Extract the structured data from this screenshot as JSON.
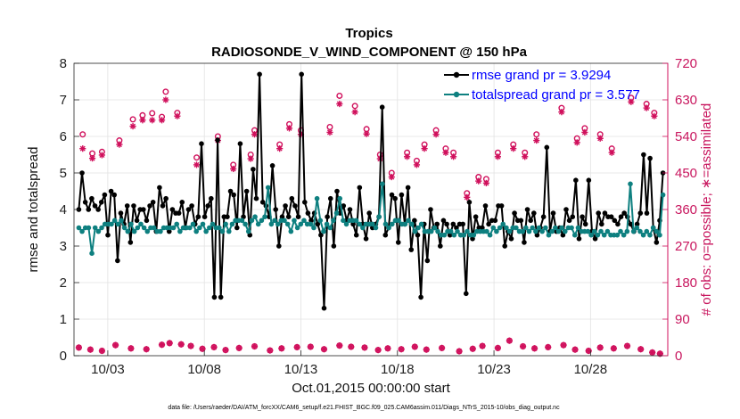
{
  "chart_data": {
    "type": "line",
    "title": "Tropics",
    "subtitle": "RADIOSONDE_V_WIND_COMPONENT @ 150 hPa",
    "xlabel": "Oct.01,2015 00:00:00 start",
    "ylabel": "rmse and totalspread",
    "ylabel_right": "# of obs: o=possible; ∗=assimilated",
    "footer": "data file: /Users/raeder/DAI/ATM_forcXX/CAM6_setup/f.e21.FHIST_BGC.f09_025.CAM6assim.011/Diags_NTrS_2015-10/obs_diag_output.nc",
    "x_tick_values": [
      3,
      8,
      13,
      18,
      23,
      28
    ],
    "x_tick_labels": [
      "10/03",
      "10/08",
      "10/13",
      "10/18",
      "10/23",
      "10/28"
    ],
    "xlim": [
      1.25,
      32.0
    ],
    "ylim": [
      0,
      8
    ],
    "y_ticks": [
      0,
      1,
      2,
      3,
      4,
      5,
      6,
      7,
      8
    ],
    "ylim_right": [
      0,
      720
    ],
    "y_ticks_right": [
      0,
      90,
      180,
      270,
      360,
      450,
      540,
      630,
      720
    ],
    "grid": true,
    "legend_position": "top-right",
    "colors": {
      "rmse": "#000000",
      "spread": "#0e8080",
      "obs": "#d0105c",
      "legend_text": "#0000ff",
      "grid": "#e2e2e2"
    },
    "series": [
      {
        "name": "rmse grand pr = 3.9294",
        "values": [
          4.0,
          5.0,
          4.2,
          4.0,
          4.3,
          4.1,
          4.0,
          4.2,
          4.4,
          3.3,
          4.5,
          4.4,
          2.6,
          3.9,
          3.6,
          4.1,
          3.1,
          4.1,
          3.7,
          4.0,
          4.0,
          3.7,
          4.1,
          4.2,
          3.4,
          4.6,
          4.1,
          4.3,
          3.4,
          4.0,
          3.9,
          3.9,
          4.2,
          3.5,
          4.0,
          4.1,
          3.6,
          3.8,
          5.8,
          3.8,
          4.1,
          4.3,
          1.6,
          5.9,
          1.6,
          3.8,
          3.8,
          4.5,
          4.4,
          3.5,
          5.8,
          3.8,
          4.5,
          3.3,
          5.1,
          4.3,
          7.7,
          4.2,
          4.1,
          3.8,
          5.2,
          4.0,
          3.0,
          3.8,
          4.1,
          3.8,
          4.3,
          4.1,
          3.8,
          7.7,
          4.2,
          3.9,
          3.7,
          3.9,
          3.6,
          3.3,
          1.3,
          3.8,
          4.3,
          3.0,
          4.5,
          3.9,
          4.1,
          3.7,
          4.0,
          3.6,
          3.3,
          4.6,
          3.6,
          3.2,
          3.9,
          3.5,
          3.6,
          3.8,
          6.8,
          3.3,
          3.5,
          4.4,
          4.3,
          3.1,
          4.4,
          3.6,
          4.6,
          2.9,
          3.7,
          3.3,
          1.6,
          3.6,
          2.6,
          4.0,
          3.5,
          3.6,
          3.0,
          3.7,
          3.6,
          3.3,
          3.6,
          3.5,
          3.6,
          3.6,
          1.7,
          4.2,
          3.2,
          3.8,
          3.5,
          3.5,
          4.1,
          3.6,
          3.7,
          3.7,
          4.1,
          4.1,
          3.0,
          3.4,
          3.2,
          3.9,
          3.7,
          3.7,
          3.1,
          4.0,
          3.7,
          3.9,
          3.3,
          3.5,
          3.8,
          5.7,
          3.4,
          3.9,
          3.4,
          3.5,
          3.3,
          4.0,
          3.7,
          3.8,
          4.8,
          3.2,
          3.8,
          3.6,
          4.8,
          3.4,
          3.2,
          3.9,
          3.6,
          3.9,
          3.8,
          3.8,
          3.7,
          3.6,
          3.8,
          3.9,
          3.8,
          3.6,
          3.4,
          3.6,
          3.9,
          5.5,
          3.9,
          5.4,
          3.5,
          3.1,
          3.7,
          5.0
        ]
      },
      {
        "name": "totalspread grand pr = 3.577",
        "values": [
          3.5,
          3.4,
          3.5,
          3.5,
          2.8,
          3.5,
          3.4,
          3.5,
          3.6,
          3.6,
          3.6,
          3.7,
          3.6,
          3.7,
          3.5,
          3.4,
          3.6,
          3.4,
          3.5,
          3.6,
          3.5,
          3.4,
          3.5,
          3.5,
          3.4,
          3.4,
          3.5,
          3.5,
          3.5,
          3.5,
          3.6,
          3.4,
          3.5,
          3.5,
          3.5,
          3.6,
          3.4,
          3.5,
          3.6,
          3.4,
          3.5,
          3.6,
          3.5,
          3.5,
          3.4,
          3.6,
          3.4,
          3.6,
          3.7,
          3.7,
          3.7,
          3.6,
          3.4,
          3.7,
          3.8,
          3.6,
          3.7,
          3.8,
          4.6,
          3.6,
          3.7,
          3.6,
          3.7,
          3.7,
          3.6,
          3.4,
          3.7,
          3.5,
          3.6,
          3.7,
          3.6,
          3.6,
          3.5,
          4.3,
          3.7,
          3.4,
          3.6,
          3.5,
          3.7,
          3.9,
          4.3,
          3.7,
          3.6,
          3.7,
          3.7,
          3.7,
          3.6,
          3.5,
          3.6,
          3.6,
          3.6,
          3.5,
          3.8,
          4.7,
          3.6,
          3.5,
          3.6,
          3.7,
          3.7,
          3.6,
          3.6,
          3.7,
          3.6,
          3.4,
          3.5,
          3.6,
          3.4,
          3.4,
          3.4,
          3.5,
          3.4,
          3.3,
          3.3,
          3.4,
          3.4,
          3.3,
          3.4,
          3.3,
          3.3,
          3.4,
          3.3,
          3.3,
          3.4,
          3.4,
          3.4,
          3.4,
          3.3,
          3.5,
          3.4,
          3.5,
          3.6,
          3.5,
          3.4,
          3.5,
          3.5,
          3.4,
          3.4,
          3.5,
          3.4,
          3.5,
          3.4,
          3.5,
          3.4,
          3.5,
          3.3,
          3.4,
          3.5,
          3.4,
          3.5,
          3.4,
          3.5,
          3.5,
          3.3,
          3.5,
          3.4,
          3.4,
          3.4,
          3.3,
          3.4,
          3.3,
          3.4,
          3.3,
          3.4,
          3.3,
          3.3,
          3.3,
          3.4,
          3.3,
          3.4,
          4.7,
          3.4,
          3.5,
          3.4,
          3.3,
          3.4,
          3.3,
          3.5,
          3.4,
          3.3,
          4.4
        ]
      }
    ],
    "obs_possible": [
      {
        "x": 1.7,
        "y": 545
      },
      {
        "x": 2.2,
        "y": 498
      },
      {
        "x": 2.7,
        "y": 502
      },
      {
        "x": 3.6,
        "y": 530
      },
      {
        "x": 4.3,
        "y": 582
      },
      {
        "x": 4.8,
        "y": 592
      },
      {
        "x": 5.3,
        "y": 597
      },
      {
        "x": 5.8,
        "y": 588
      },
      {
        "x": 6.0,
        "y": 650
      },
      {
        "x": 6.6,
        "y": 598
      },
      {
        "x": 7.6,
        "y": 488
      },
      {
        "x": 8.7,
        "y": 540
      },
      {
        "x": 9.5,
        "y": 470
      },
      {
        "x": 10.4,
        "y": 495
      },
      {
        "x": 10.6,
        "y": 555
      },
      {
        "x": 11.9,
        "y": 520
      },
      {
        "x": 12.4,
        "y": 570
      },
      {
        "x": 13.0,
        "y": 555
      },
      {
        "x": 14.5,
        "y": 563
      },
      {
        "x": 15.0,
        "y": 640
      },
      {
        "x": 15.8,
        "y": 615
      },
      {
        "x": 16.4,
        "y": 558
      },
      {
        "x": 17.1,
        "y": 495
      },
      {
        "x": 17.7,
        "y": 450
      },
      {
        "x": 18.5,
        "y": 500
      },
      {
        "x": 19.0,
        "y": 480
      },
      {
        "x": 19.4,
        "y": 520
      },
      {
        "x": 20.0,
        "y": 555
      },
      {
        "x": 20.5,
        "y": 510
      },
      {
        "x": 20.9,
        "y": 500
      },
      {
        "x": 21.6,
        "y": 400
      },
      {
        "x": 22.2,
        "y": 440
      },
      {
        "x": 22.6,
        "y": 435
      },
      {
        "x": 23.2,
        "y": 500
      },
      {
        "x": 24.0,
        "y": 520
      },
      {
        "x": 24.6,
        "y": 500
      },
      {
        "x": 25.2,
        "y": 545
      },
      {
        "x": 26.5,
        "y": 610
      },
      {
        "x": 27.3,
        "y": 535
      },
      {
        "x": 27.7,
        "y": 560
      },
      {
        "x": 28.5,
        "y": 545
      },
      {
        "x": 29.1,
        "y": 510
      },
      {
        "x": 30.1,
        "y": 635
      },
      {
        "x": 30.9,
        "y": 620
      },
      {
        "x": 31.3,
        "y": 598
      }
    ],
    "obs_assimilated": [
      {
        "x": 1.7,
        "y": 510
      },
      {
        "x": 2.2,
        "y": 486
      },
      {
        "x": 2.7,
        "y": 494
      },
      {
        "x": 3.6,
        "y": 520
      },
      {
        "x": 4.3,
        "y": 565
      },
      {
        "x": 4.8,
        "y": 580
      },
      {
        "x": 5.3,
        "y": 580
      },
      {
        "x": 5.8,
        "y": 580
      },
      {
        "x": 6.0,
        "y": 630
      },
      {
        "x": 6.6,
        "y": 590
      },
      {
        "x": 7.6,
        "y": 470
      },
      {
        "x": 8.7,
        "y": 530
      },
      {
        "x": 9.5,
        "y": 460
      },
      {
        "x": 10.4,
        "y": 485
      },
      {
        "x": 10.6,
        "y": 545
      },
      {
        "x": 11.9,
        "y": 510
      },
      {
        "x": 12.4,
        "y": 560
      },
      {
        "x": 13.0,
        "y": 545
      },
      {
        "x": 14.5,
        "y": 550
      },
      {
        "x": 15.0,
        "y": 620
      },
      {
        "x": 15.8,
        "y": 600
      },
      {
        "x": 16.4,
        "y": 546
      },
      {
        "x": 17.1,
        "y": 485
      },
      {
        "x": 17.7,
        "y": 440
      },
      {
        "x": 18.5,
        "y": 490
      },
      {
        "x": 19.0,
        "y": 470
      },
      {
        "x": 19.4,
        "y": 510
      },
      {
        "x": 20.0,
        "y": 545
      },
      {
        "x": 20.5,
        "y": 500
      },
      {
        "x": 20.9,
        "y": 490
      },
      {
        "x": 21.6,
        "y": 390
      },
      {
        "x": 22.2,
        "y": 430
      },
      {
        "x": 22.6,
        "y": 425
      },
      {
        "x": 23.2,
        "y": 490
      },
      {
        "x": 24.0,
        "y": 510
      },
      {
        "x": 24.6,
        "y": 490
      },
      {
        "x": 25.2,
        "y": 530
      },
      {
        "x": 26.5,
        "y": 600
      },
      {
        "x": 27.3,
        "y": 525
      },
      {
        "x": 27.7,
        "y": 550
      },
      {
        "x": 28.5,
        "y": 535
      },
      {
        "x": 29.1,
        "y": 500
      },
      {
        "x": 30.1,
        "y": 625
      },
      {
        "x": 30.9,
        "y": 610
      },
      {
        "x": 31.3,
        "y": 590
      }
    ],
    "obs_bottom": [
      {
        "x": 1.5,
        "y": 20
      },
      {
        "x": 2.1,
        "y": 15
      },
      {
        "x": 2.7,
        "y": 12
      },
      {
        "x": 3.4,
        "y": 26
      },
      {
        "x": 4.2,
        "y": 18
      },
      {
        "x": 5.0,
        "y": 16
      },
      {
        "x": 5.8,
        "y": 27
      },
      {
        "x": 6.2,
        "y": 31
      },
      {
        "x": 6.8,
        "y": 28
      },
      {
        "x": 7.3,
        "y": 24
      },
      {
        "x": 7.9,
        "y": 17
      },
      {
        "x": 8.5,
        "y": 21
      },
      {
        "x": 9.1,
        "y": 14
      },
      {
        "x": 9.8,
        "y": 19
      },
      {
        "x": 10.6,
        "y": 23
      },
      {
        "x": 11.4,
        "y": 13
      },
      {
        "x": 12.0,
        "y": 18
      },
      {
        "x": 12.8,
        "y": 21
      },
      {
        "x": 13.5,
        "y": 22
      },
      {
        "x": 14.2,
        "y": 16
      },
      {
        "x": 15.0,
        "y": 25
      },
      {
        "x": 15.6,
        "y": 22
      },
      {
        "x": 16.3,
        "y": 20
      },
      {
        "x": 17.0,
        "y": 14
      },
      {
        "x": 17.5,
        "y": 18
      },
      {
        "x": 18.2,
        "y": 16
      },
      {
        "x": 18.9,
        "y": 22
      },
      {
        "x": 19.5,
        "y": 15
      },
      {
        "x": 20.3,
        "y": 19
      },
      {
        "x": 21.2,
        "y": 11
      },
      {
        "x": 21.9,
        "y": 17
      },
      {
        "x": 22.4,
        "y": 24
      },
      {
        "x": 23.2,
        "y": 19
      },
      {
        "x": 23.8,
        "y": 37
      },
      {
        "x": 24.5,
        "y": 23
      },
      {
        "x": 25.1,
        "y": 18
      },
      {
        "x": 25.8,
        "y": 21
      },
      {
        "x": 26.6,
        "y": 26
      },
      {
        "x": 27.2,
        "y": 15
      },
      {
        "x": 27.9,
        "y": 12
      },
      {
        "x": 28.5,
        "y": 20
      },
      {
        "x": 29.2,
        "y": 18
      },
      {
        "x": 29.9,
        "y": 24
      },
      {
        "x": 30.6,
        "y": 16
      },
      {
        "x": 31.2,
        "y": 8
      },
      {
        "x": 31.6,
        "y": 5
      }
    ]
  }
}
